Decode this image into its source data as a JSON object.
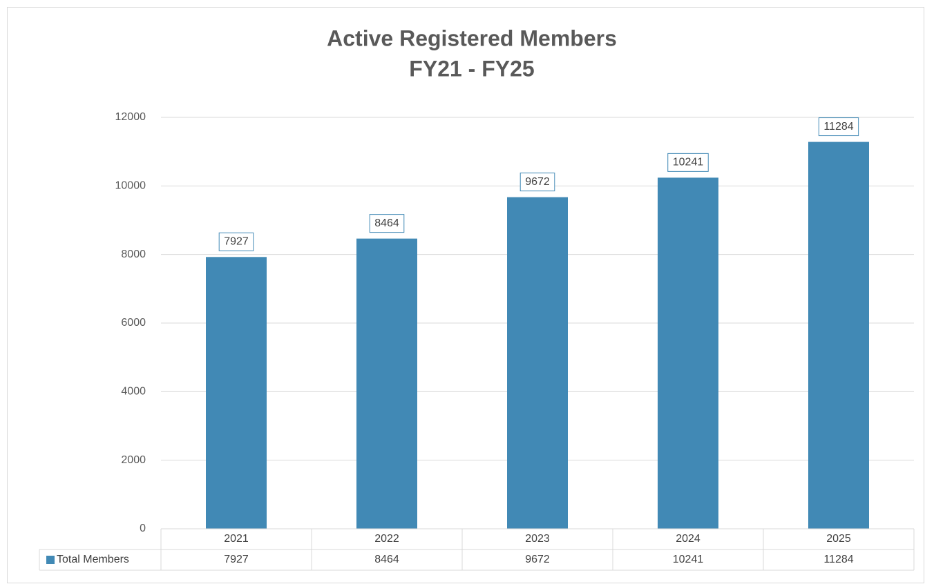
{
  "chart_data": {
    "type": "bar",
    "title": "Active Registered Members",
    "subtitle": "FY21 - FY25",
    "categories": [
      "2021",
      "2022",
      "2023",
      "2024",
      "2025"
    ],
    "series": [
      {
        "name": "Total Members",
        "color": "#4189b5",
        "values": [
          7927,
          8464,
          9672,
          10241,
          11284
        ]
      }
    ],
    "ylim": [
      0,
      12000
    ],
    "yticks": [
      0,
      2000,
      4000,
      6000,
      8000,
      10000,
      12000
    ],
    "grid": true,
    "data_table": true
  }
}
